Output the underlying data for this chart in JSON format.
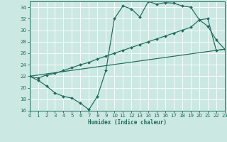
{
  "xlabel": "Humidex (Indice chaleur)",
  "bg_color": "#cce8e2",
  "line_color": "#1e6b5e",
  "xlim": [
    0,
    23
  ],
  "ylim": [
    16,
    35
  ],
  "yticks": [
    16,
    18,
    20,
    22,
    24,
    26,
    28,
    30,
    32,
    34
  ],
  "xticks": [
    0,
    1,
    2,
    3,
    4,
    5,
    6,
    7,
    8,
    9,
    10,
    11,
    12,
    13,
    14,
    15,
    16,
    17,
    18,
    19,
    20,
    21,
    22,
    23
  ],
  "line1_x": [
    0,
    1,
    2,
    3,
    4,
    5,
    6,
    7,
    8,
    9,
    10,
    11,
    12,
    13,
    14,
    15,
    16,
    17,
    18,
    19,
    20,
    21,
    22,
    23
  ],
  "line1_y": [
    22.0,
    21.3,
    20.3,
    19.1,
    18.5,
    18.2,
    17.3,
    16.2,
    18.5,
    23.0,
    32.0,
    34.2,
    33.7,
    32.3,
    35.0,
    34.5,
    34.8,
    34.7,
    34.2,
    34.0,
    31.8,
    30.7,
    28.3,
    26.7
  ],
  "line2_x": [
    0,
    1,
    2,
    3,
    4,
    5,
    6,
    7,
    8,
    9,
    10,
    11,
    12,
    13,
    14,
    15,
    16,
    17,
    18,
    19,
    20,
    21,
    22,
    23
  ],
  "line2_y": [
    22.0,
    21.7,
    22.2,
    22.5,
    23.0,
    23.5,
    24.0,
    24.4,
    25.0,
    25.5,
    26.0,
    26.5,
    27.0,
    27.5,
    28.0,
    28.5,
    29.0,
    29.5,
    30.0,
    30.5,
    31.8,
    32.0,
    26.5,
    26.7
  ],
  "line3_x": [
    0,
    23
  ],
  "line3_y": [
    22.0,
    26.7
  ]
}
